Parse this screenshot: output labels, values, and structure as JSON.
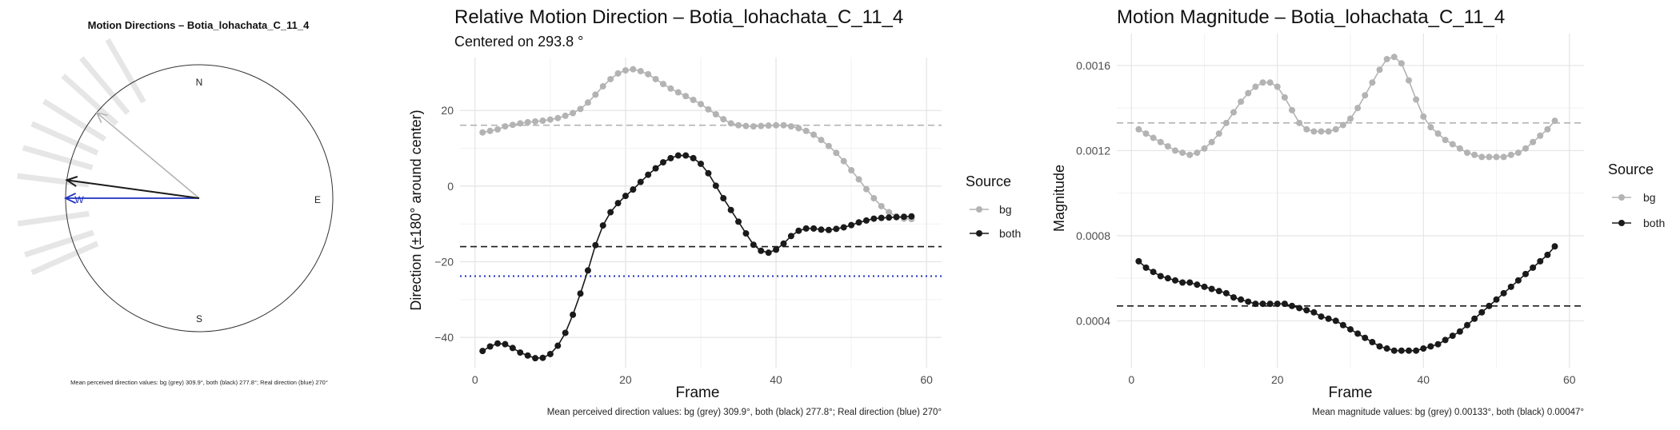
{
  "panel1": {
    "title": "Motion Directions – Botia_lohachata_C_11_4",
    "compass": {
      "n": "N",
      "e": "E",
      "s": "S",
      "w": "W"
    },
    "caption": "Mean perceived direction values: bg (grey) 309.9°, both (black) 277.8°; Real direction (blue) 270°"
  },
  "panel2": {
    "title": "Relative Motion Direction – Botia_lohachata_C_11_4",
    "subtitle": "Centered on  293.8 °",
    "caption": "Mean perceived direction values: bg (grey) 309.9°, both (black) 277.8°; Real direction (blue) 270°",
    "legend_title": "Source",
    "legend": [
      "bg",
      "both"
    ]
  },
  "panel3": {
    "title": "Motion Magnitude – Botia_lohachata_C_11_4",
    "caption": "Mean magnitude values: bg (grey) 0.00133°, both (black) 0.00047°",
    "legend_title": "Source",
    "legend": [
      "bg",
      "both"
    ]
  },
  "colors": {
    "bg": "#b3b3b3",
    "both": "#1a1a1a",
    "real": "#1f2fbf"
  },
  "chart_data": [
    {
      "type": "compass",
      "title": "Motion Directions – Botia_lohachata_C_11_4",
      "directions_deg": {
        "bg": 309.9,
        "both": 277.8,
        "real": 270
      },
      "spokes_deg": [
        330,
        320,
        312,
        302,
        294,
        286,
        277,
        262,
        252,
        246
      ]
    },
    {
      "type": "line",
      "title": "Relative Motion Direction – Botia_lohachata_C_11_4",
      "subtitle": "Centered on  293.8 °",
      "xlabel": "Frame",
      "ylabel": "Direction (±180° around center)",
      "xlim": [
        -2,
        62
      ],
      "ylim": [
        -48,
        34
      ],
      "xticks": [
        0,
        20,
        40,
        60
      ],
      "yticks": [
        -40,
        -20,
        0,
        20
      ],
      "hlines": [
        {
          "name": "bg",
          "value": 16.1,
          "style": "dashed"
        },
        {
          "name": "both",
          "value": -16.0,
          "style": "dashed"
        },
        {
          "name": "real",
          "value": -23.8,
          "style": "dotted"
        }
      ],
      "x": [
        1,
        2,
        3,
        4,
        5,
        6,
        7,
        8,
        9,
        10,
        11,
        12,
        13,
        14,
        15,
        16,
        17,
        18,
        19,
        20,
        21,
        22,
        23,
        24,
        25,
        26,
        27,
        28,
        29,
        30,
        31,
        32,
        33,
        34,
        35,
        36,
        37,
        38,
        39,
        40,
        41,
        42,
        43,
        44,
        45,
        46,
        47,
        48,
        49,
        50,
        51,
        52,
        53,
        54,
        55,
        56,
        57,
        58
      ],
      "series": [
        {
          "name": "bg",
          "values": [
            14.2,
            14.6,
            15.0,
            15.8,
            16.2,
            16.6,
            16.9,
            17.1,
            17.3,
            17.6,
            18.0,
            18.6,
            19.3,
            20.4,
            22.1,
            24.2,
            26.4,
            28.3,
            29.8,
            30.6,
            30.9,
            30.4,
            29.6,
            28.3,
            27.0,
            25.8,
            24.8,
            23.8,
            22.8,
            21.7,
            20.3,
            19.0,
            17.7,
            16.6,
            16.1,
            15.9,
            15.8,
            15.9,
            16.0,
            16.1,
            16.1,
            15.8,
            15.3,
            14.6,
            13.6,
            12.2,
            10.6,
            8.8,
            6.6,
            4.2,
            1.8,
            -0.8,
            -3.2,
            -5.3,
            -6.9,
            -8.0,
            -8.6,
            -8.7
          ]
        },
        {
          "name": "both",
          "values": [
            -43.6,
            -42.4,
            -41.6,
            -41.8,
            -42.8,
            -44.0,
            -44.8,
            -45.5,
            -45.4,
            -44.4,
            -42.2,
            -38.8,
            -34.0,
            -28.4,
            -22.3,
            -15.6,
            -10.4,
            -6.9,
            -4.5,
            -2.6,
            -0.9,
            1.1,
            3.0,
            4.7,
            6.3,
            7.4,
            8.1,
            8.1,
            7.4,
            5.9,
            3.4,
            0.1,
            -3.2,
            -6.3,
            -9.4,
            -12.5,
            -15.5,
            -17.1,
            -17.6,
            -16.8,
            -15.2,
            -13.2,
            -11.8,
            -11.2,
            -11.2,
            -11.5,
            -11.6,
            -11.3,
            -10.9,
            -10.3,
            -9.6,
            -9.1,
            -8.6,
            -8.4,
            -8.3,
            -8.2,
            -8.1,
            -8.0
          ]
        }
      ]
    },
    {
      "type": "line",
      "title": "Motion Magnitude – Botia_lohachata_C_11_4",
      "xlabel": "Frame",
      "ylabel": "Magnitude",
      "xlim": [
        -2,
        62
      ],
      "ylim": [
        0.00018,
        0.00175
      ],
      "xticks": [
        0,
        20,
        40,
        60
      ],
      "yticks": [
        0.0004,
        0.0008,
        0.0012,
        0.0016
      ],
      "ytick_labels": [
        "0.0004",
        "0.0008",
        "0.0012",
        "0.0016"
      ],
      "hlines": [
        {
          "name": "bg",
          "value": 0.00133,
          "style": "dashed"
        },
        {
          "name": "both",
          "value": 0.00047,
          "style": "dashed"
        }
      ],
      "x": [
        1,
        2,
        3,
        4,
        5,
        6,
        7,
        8,
        9,
        10,
        11,
        12,
        13,
        14,
        15,
        16,
        17,
        18,
        19,
        20,
        21,
        22,
        23,
        24,
        25,
        26,
        27,
        28,
        29,
        30,
        31,
        32,
        33,
        34,
        35,
        36,
        37,
        38,
        39,
        40,
        41,
        42,
        43,
        44,
        45,
        46,
        47,
        48,
        49,
        50,
        51,
        52,
        53,
        54,
        55,
        56,
        57,
        58
      ],
      "series": [
        {
          "name": "bg",
          "values": [
            0.0013,
            0.00128,
            0.00126,
            0.00124,
            0.00122,
            0.0012,
            0.00119,
            0.00118,
            0.00119,
            0.00121,
            0.00124,
            0.00128,
            0.00133,
            0.00138,
            0.00143,
            0.00147,
            0.0015,
            0.00152,
            0.00152,
            0.0015,
            0.00145,
            0.00139,
            0.00133,
            0.0013,
            0.00129,
            0.00129,
            0.00129,
            0.0013,
            0.00132,
            0.00135,
            0.0014,
            0.00146,
            0.00152,
            0.00158,
            0.00163,
            0.00164,
            0.00161,
            0.00153,
            0.00144,
            0.00136,
            0.00131,
            0.00128,
            0.00125,
            0.00123,
            0.00121,
            0.00119,
            0.00118,
            0.00117,
            0.00117,
            0.00117,
            0.00117,
            0.00118,
            0.00119,
            0.00121,
            0.00124,
            0.00127,
            0.0013,
            0.00134
          ]
        },
        {
          "name": "both",
          "values": [
            0.00068,
            0.00065,
            0.00063,
            0.00061,
            0.0006,
            0.00059,
            0.00058,
            0.00058,
            0.00057,
            0.00056,
            0.00055,
            0.00054,
            0.00053,
            0.00051,
            0.0005,
            0.00049,
            0.00048,
            0.00048,
            0.00048,
            0.00048,
            0.00048,
            0.00047,
            0.00046,
            0.00045,
            0.00044,
            0.00042,
            0.00041,
            0.0004,
            0.00038,
            0.00036,
            0.00034,
            0.00032,
            0.0003,
            0.00028,
            0.00027,
            0.00026,
            0.00026,
            0.00026,
            0.00026,
            0.00027,
            0.00028,
            0.00029,
            0.00031,
            0.00033,
            0.00035,
            0.00038,
            0.00041,
            0.00044,
            0.00047,
            0.0005,
            0.00053,
            0.00056,
            0.00059,
            0.00062,
            0.00065,
            0.00068,
            0.00071,
            0.00075
          ]
        }
      ]
    }
  ]
}
